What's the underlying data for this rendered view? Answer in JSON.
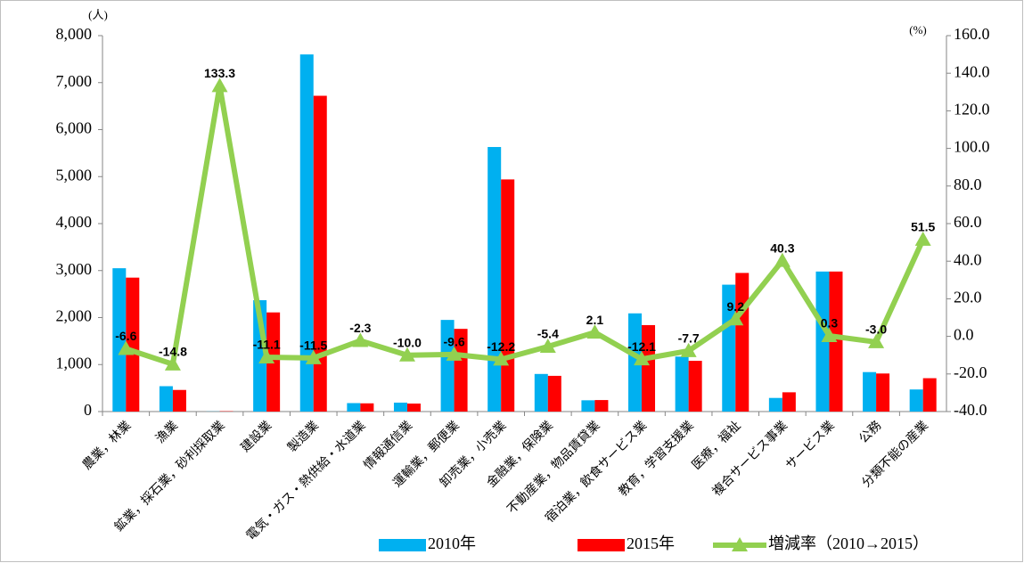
{
  "chart_data": {
    "type": "bar-line",
    "y_unit": "(人)",
    "y2_unit": "(%)",
    "categories": [
      "農業，林業",
      "漁業",
      "鉱業，採石業，砂利採取業",
      "建設業",
      "製造業",
      "電気・ガス・熱供給・水道業",
      "情報通信業",
      "運輸業，郵便業",
      "卸売業，小売業",
      "金融業，保険業",
      "不動産業，物品賃貸業",
      "宿泊業，飲食サービス業",
      "教育，学習支援業",
      "医療，福祉",
      "複合サービス事業",
      "サービス業",
      "公務",
      "分類不能の産業"
    ],
    "series": [
      {
        "name": "2010年",
        "color": "#00b0f0",
        "values": [
          3050,
          540,
          3,
          2370,
          7600,
          180,
          190,
          1950,
          5630,
          800,
          240,
          2090,
          1170,
          2700,
          290,
          2980,
          840,
          470
        ]
      },
      {
        "name": "2015年",
        "color": "#ff0000",
        "values": [
          2850,
          460,
          7,
          2110,
          6720,
          175,
          170,
          1760,
          4940,
          760,
          245,
          1840,
          1080,
          2950,
          410,
          2980,
          810,
          710
        ]
      },
      {
        "name": "増減率（2010→2015）",
        "color": "#92d050",
        "axis": "y2",
        "values": [
          -6.6,
          -14.8,
          133.3,
          -11.1,
          -11.5,
          -2.3,
          -10,
          -9.6,
          -12.2,
          -5.4,
          2.1,
          -12.1,
          -7.7,
          9.2,
          40.3,
          0.3,
          -3,
          51.5
        ],
        "value_labels": [
          "-6.6",
          "-14.8",
          "133.3",
          "-11.1",
          "-11.5",
          "-2.3",
          "-10.0",
          "-9.6",
          "-12.2",
          "-5.4",
          "2.1",
          "-12.1",
          "-7.7",
          "9.2",
          "40.3",
          "0.3",
          "-3.0",
          "51.5"
        ]
      }
    ],
    "ylim": [
      0,
      8000
    ],
    "yticks": [
      0,
      {
        "value": 1000,
        "label": "1,000"
      },
      {
        "value": 2000,
        "label": "2,000"
      },
      {
        "value": 3000,
        "label": "3,000"
      },
      {
        "value": 4000,
        "label": "4,000"
      },
      {
        "value": 5000,
        "label": "5,000"
      },
      {
        "value": 6000,
        "label": "6,000"
      },
      {
        "value": 7000,
        "label": "7,000"
      },
      {
        "value": 8000,
        "label": "8,000"
      }
    ],
    "y2lim": [
      -40,
      160
    ],
    "y2ticks": [
      {
        "value": -40,
        "label": "-40.0"
      },
      {
        "value": -20,
        "label": "-20.0"
      },
      {
        "value": 0,
        "label": "0.0"
      },
      {
        "value": 20,
        "label": "20.0"
      },
      {
        "value": 40,
        "label": "40.0"
      },
      {
        "value": 60,
        "label": "60.0"
      },
      {
        "value": 80,
        "label": "80.0"
      },
      {
        "value": 100,
        "label": "100.0"
      },
      {
        "value": 120,
        "label": "120.0"
      },
      {
        "value": 140,
        "label": "140.0"
      },
      {
        "value": 160,
        "label": "160.0"
      }
    ],
    "legend": "bottom"
  }
}
